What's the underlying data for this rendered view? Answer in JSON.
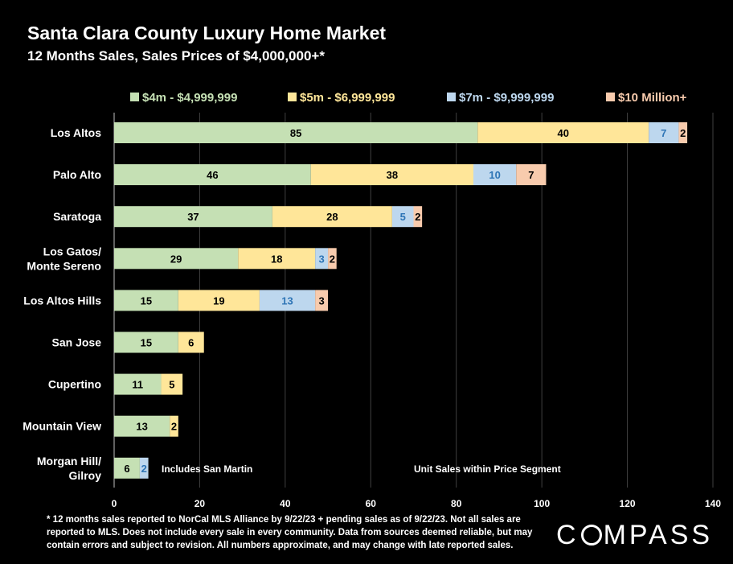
{
  "title": "Santa Clara County Luxury Home Market",
  "subtitle": "12 Months Sales, Sales Prices of $4,000,000+*",
  "footnote": "* 12 months sales reported to NorCal MLS Alliance by 9/22/23 + pending sales as of 9/22/23. Not all sales are reported to MLS. Does not include every sale in every community. Data from  sources deemed reliable, but may contain errors and subject to revision. All numbers approximate, and may change with late reported sales.",
  "logo_text": "COMPASS",
  "chart_data": {
    "type": "bar",
    "orientation": "horizontal",
    "stacked": true,
    "title": "Santa Clara County Luxury Home Market",
    "subtitle": "12 Months Sales, Sales Prices of $4,000,000+*",
    "categories": [
      "Los Altos",
      "Palo Alto",
      "Saratoga",
      "Los Gatos/\nMonte Sereno",
      "Los Altos Hills",
      "San Jose",
      "Cupertino",
      "Mountain View",
      "Morgan Hill/\nGilroy"
    ],
    "series": [
      {
        "name": "$4m - $4,999,999",
        "color": "#c5e0b4",
        "label_color": "#000000",
        "values": [
          85,
          46,
          37,
          29,
          15,
          15,
          11,
          13,
          6
        ]
      },
      {
        "name": "$5m - $6,999,999",
        "color": "#ffe699",
        "label_color": "#000000",
        "values": [
          40,
          38,
          28,
          18,
          19,
          6,
          5,
          2,
          0
        ]
      },
      {
        "name": "$7m - $9,999,999",
        "color": "#bdd7ee",
        "label_color": "#2e75b6",
        "values": [
          7,
          10,
          5,
          3,
          13,
          0,
          0,
          0,
          2
        ]
      },
      {
        "name": "$10 Million+",
        "color": "#f8cbad",
        "label_color": "#000000",
        "values": [
          2,
          7,
          2,
          2,
          3,
          0,
          0,
          0,
          0
        ]
      }
    ],
    "legend_text_colors": [
      "#c5e0b4",
      "#ffe699",
      "#bdd7ee",
      "#f8cbad"
    ],
    "xlim": [
      0,
      140
    ],
    "xticks": [
      0,
      20,
      40,
      60,
      80,
      100,
      120,
      140
    ],
    "grid": "vertical",
    "legend_position": "top",
    "annotations": [
      "Includes San Martin",
      "Unit Sales within Price Segment"
    ],
    "colors": {
      "background": "#000000",
      "gridline": "#404040",
      "text": "#ffffff"
    }
  }
}
